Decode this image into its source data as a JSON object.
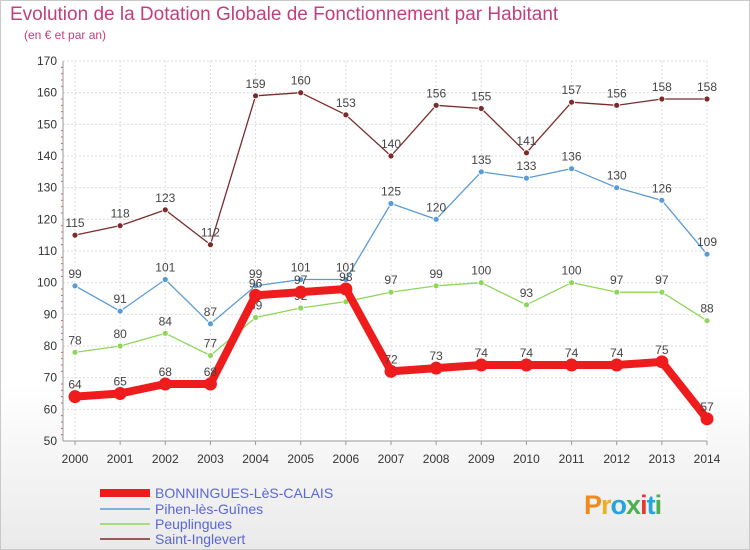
{
  "title": "Evolution de la Dotation Globale de Fonctionnement par Habitant",
  "subtitle": "(en € et par an)",
  "logo": {
    "letters": [
      "P",
      "r",
      "o",
      "x",
      "i",
      "t",
      "i"
    ],
    "colors": [
      "#f08a1c",
      "#f0ae1c",
      "#27a4dd",
      "#4caf50",
      "#e53935",
      "#27a4dd",
      "#4caf50"
    ]
  },
  "chart_data": {
    "type": "line",
    "x": [
      "2000",
      "2001",
      "2002",
      "2003",
      "2004",
      "2005",
      "2006",
      "2007",
      "2008",
      "2009",
      "2010",
      "2011",
      "2012",
      "2013",
      "2014"
    ],
    "ylim": [
      50,
      170
    ],
    "yticks": [
      50,
      60,
      70,
      80,
      90,
      100,
      110,
      120,
      130,
      140,
      150,
      160,
      170
    ],
    "grid": true,
    "legend_position": "bottom-left",
    "series": [
      {
        "name": "BONNINGUES-LèS-CALAIS",
        "color": "#ee1c1c",
        "values": [
          64,
          65,
          68,
          68,
          96,
          97,
          98,
          72,
          73,
          74,
          74,
          74,
          74,
          75,
          57
        ],
        "labels": [
          "64",
          "65",
          "68",
          "68",
          "96",
          "97",
          "98",
          "72",
          "73",
          "74",
          "74",
          "74",
          "74",
          "75",
          "57"
        ]
      },
      {
        "name": "Pihen-lès-Guînes",
        "color": "#5b9bd5",
        "values": [
          99,
          91,
          101,
          87,
          99,
          101,
          101,
          125,
          120,
          135,
          133,
          136,
          130,
          126,
          109
        ],
        "labels": [
          "99",
          "91",
          "101",
          "87",
          "99",
          "101",
          "101",
          "125",
          "120",
          "135",
          "133",
          "136",
          "130",
          "126",
          "109"
        ]
      },
      {
        "name": "Peuplingues",
        "color": "#8fd65a",
        "values": [
          78,
          80,
          84,
          77,
          89,
          92,
          94,
          97,
          99,
          100,
          93,
          100,
          97,
          97,
          88
        ],
        "labels": [
          "78",
          "80",
          "84",
          "77",
          "89",
          "92",
          "94",
          "97",
          "99",
          "100",
          "93",
          "100",
          "97",
          "97",
          "88"
        ]
      },
      {
        "name": "Saint-Inglevert",
        "color": "#7b2b2b",
        "values": [
          115,
          118,
          123,
          112,
          159,
          160,
          153,
          140,
          156,
          155,
          141,
          157,
          156,
          158,
          158
        ],
        "labels": [
          "115",
          "118",
          "123",
          "112",
          "159",
          "160",
          "153",
          "140",
          "156",
          "155",
          "141",
          "157",
          "156",
          "158",
          "158"
        ]
      }
    ]
  }
}
